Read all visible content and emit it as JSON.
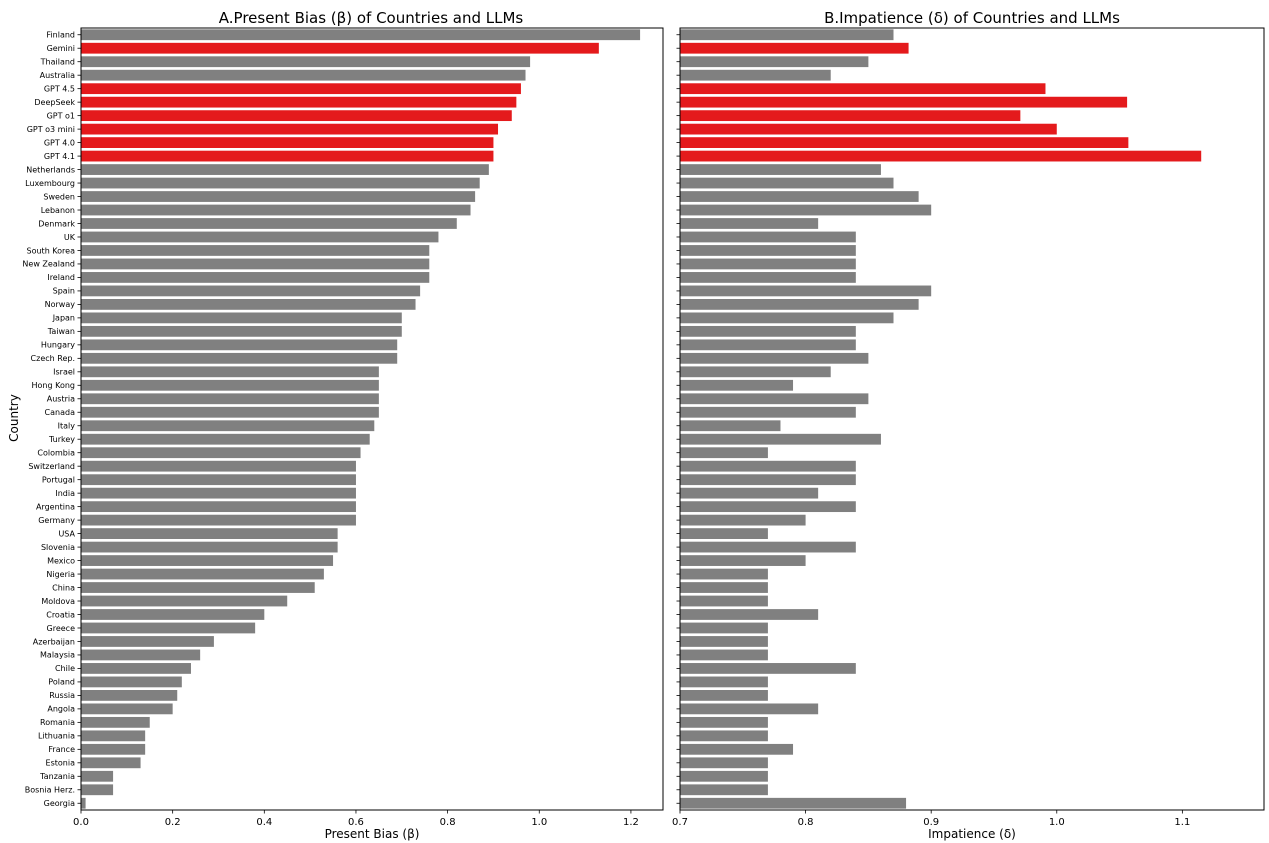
{
  "figure": {
    "ylabel": "Country",
    "highlight_color": "#e41a1c",
    "default_color": "#808080"
  },
  "chart_data": [
    {
      "type": "bar",
      "orientation": "horizontal",
      "title": "A.Present Bias (β) of Countries and LLMs",
      "xlabel": "Present Bias (β)",
      "ylabel": "Country",
      "xlim": [
        0,
        1.27
      ],
      "xticks": [
        "0.0",
        "0.2",
        "0.4",
        "0.6",
        "0.8",
        "1.0",
        "1.2"
      ],
      "grid": false,
      "categories": [
        "Finland",
        "Gemini",
        "Thailand",
        "Australia",
        "GPT 4.5",
        "DeepSeek",
        "GPT o1",
        "GPT o3 mini",
        "GPT 4.0",
        "GPT 4.1",
        "Netherlands",
        "Luxembourg",
        "Sweden",
        "Lebanon",
        "Denmark",
        "UK",
        "South Korea",
        "New Zealand",
        "Ireland",
        "Spain",
        "Norway",
        "Japan",
        "Taiwan",
        "Hungary",
        "Czech Rep.",
        "Israel",
        "Hong Kong",
        "Austria",
        "Canada",
        "Italy",
        "Turkey",
        "Colombia",
        "Switzerland",
        "Portugal",
        "India",
        "Argentina",
        "Germany",
        "USA",
        "Slovenia",
        "Mexico",
        "Nigeria",
        "China",
        "Moldova",
        "Croatia",
        "Greece",
        "Azerbaijan",
        "Malaysia",
        "Chile",
        "Poland",
        "Russia",
        "Angola",
        "Romania",
        "Lithuania",
        "France",
        "Estonia",
        "Tanzania",
        "Bosnia Herz.",
        "Georgia"
      ],
      "values": [
        1.22,
        1.13,
        0.98,
        0.97,
        0.96,
        0.95,
        0.94,
        0.91,
        0.9,
        0.9,
        0.89,
        0.87,
        0.86,
        0.85,
        0.82,
        0.78,
        0.76,
        0.76,
        0.76,
        0.74,
        0.73,
        0.7,
        0.7,
        0.69,
        0.69,
        0.65,
        0.65,
        0.65,
        0.65,
        0.64,
        0.63,
        0.61,
        0.6,
        0.6,
        0.6,
        0.6,
        0.6,
        0.56,
        0.56,
        0.55,
        0.53,
        0.51,
        0.45,
        0.4,
        0.38,
        0.29,
        0.26,
        0.24,
        0.22,
        0.21,
        0.2,
        0.15,
        0.14,
        0.14,
        0.13,
        0.07,
        0.07,
        0.01
      ],
      "highlighted": [
        "Gemini",
        "GPT 4.5",
        "DeepSeek",
        "GPT o1",
        "GPT o3 mini",
        "GPT 4.0",
        "GPT 4.1"
      ]
    },
    {
      "type": "bar",
      "orientation": "horizontal",
      "title": "B.Impatience (δ) of Countries and LLMs",
      "xlabel": "Impatience (δ)",
      "xlim": [
        0.7,
        1.165
      ],
      "xticks": [
        "0.7",
        "0.8",
        "0.9",
        "1.0",
        "1.1"
      ],
      "grid": false,
      "categories": [
        "Finland",
        "Gemini",
        "Thailand",
        "Australia",
        "GPT 4.5",
        "DeepSeek",
        "GPT o1",
        "GPT o3 mini",
        "GPT 4.0",
        "GPT 4.1",
        "Netherlands",
        "Luxembourg",
        "Sweden",
        "Lebanon",
        "Denmark",
        "UK",
        "South Korea",
        "New Zealand",
        "Ireland",
        "Spain",
        "Norway",
        "Japan",
        "Taiwan",
        "Hungary",
        "Czech Rep.",
        "Israel",
        "Hong Kong",
        "Austria",
        "Canada",
        "Italy",
        "Turkey",
        "Colombia",
        "Switzerland",
        "Portugal",
        "India",
        "Argentina",
        "Germany",
        "USA",
        "Slovenia",
        "Mexico",
        "Nigeria",
        "China",
        "Moldova",
        "Croatia",
        "Greece",
        "Azerbaijan",
        "Malaysia",
        "Chile",
        "Poland",
        "Russia",
        "Angola",
        "Romania",
        "Lithuania",
        "France",
        "Estonia",
        "Tanzania",
        "Bosnia Herz.",
        "Georgia"
      ],
      "values": [
        0.87,
        0.882,
        0.85,
        0.82,
        0.991,
        1.056,
        0.971,
        1.0,
        1.057,
        1.115,
        0.86,
        0.87,
        0.89,
        0.9,
        0.81,
        0.84,
        0.84,
        0.84,
        0.84,
        0.9,
        0.89,
        0.87,
        0.84,
        0.84,
        0.85,
        0.82,
        0.79,
        0.85,
        0.84,
        0.78,
        0.86,
        0.77,
        0.84,
        0.84,
        0.81,
        0.84,
        0.8,
        0.77,
        0.84,
        0.8,
        0.77,
        0.77,
        0.77,
        0.81,
        0.77,
        0.77,
        0.77,
        0.84,
        0.77,
        0.77,
        0.81,
        0.77,
        0.77,
        0.79,
        0.77,
        0.77,
        0.77,
        0.88
      ],
      "highlighted": [
        "Gemini",
        "GPT 4.5",
        "DeepSeek",
        "GPT o1",
        "GPT o3 mini",
        "GPT 4.0",
        "GPT 4.1"
      ]
    }
  ]
}
